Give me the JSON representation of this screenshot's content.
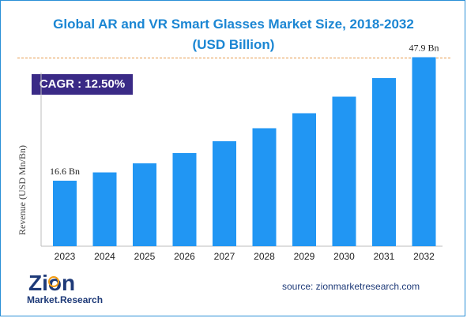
{
  "header": {
    "title_line1": "Global AR and VR Smart Glasses Market Size, 2018-2032",
    "title_line2": "(USD Billion)"
  },
  "badge": {
    "cagr": "CAGR : 12.50%"
  },
  "colors": {
    "bar": "#2196f3",
    "title": "#1b86d3",
    "badge_bg": "#3a2a86",
    "divider": "#e69a4a"
  },
  "chart_data": {
    "type": "bar",
    "title": "Global AR and VR Smart Glasses Market Size, 2018-2032 (USD Billion)",
    "xlabel": "",
    "ylabel": "Revenue (USD Mn/Bn)",
    "categories": [
      "2023",
      "2024",
      "2025",
      "2026",
      "2027",
      "2028",
      "2029",
      "2030",
      "2031",
      "2032"
    ],
    "values": [
      16.6,
      18.7,
      21.0,
      23.6,
      26.6,
      29.9,
      33.7,
      37.9,
      42.6,
      47.9
    ],
    "data_labels": [
      {
        "index": 0,
        "text": "16.6 Bn"
      },
      {
        "index": 9,
        "text": "47.9 Bn"
      }
    ],
    "ylim": [
      0,
      50
    ],
    "grid": false,
    "legend": "none"
  },
  "logo": {
    "text_top": "Zion",
    "text_bottom": "Market.Research"
  },
  "footer": {
    "source": "source: zionmarketresearch.com"
  }
}
